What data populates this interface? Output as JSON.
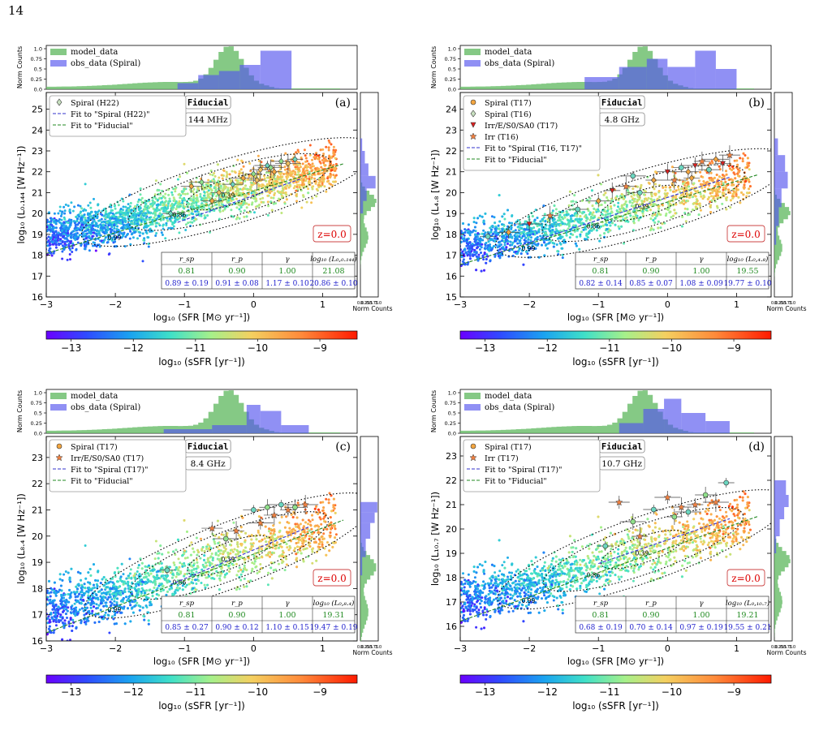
{
  "page_number": "14",
  "panel_labels": [
    "(a)",
    "(b)",
    "(c)",
    "(d)"
  ],
  "shared": {
    "x_axis_label": "log₁₀ (SFR [M⊙ yr⁻¹])",
    "x_ticks": [
      "−3",
      "−2",
      "−1",
      "0",
      "1"
    ],
    "hist_top_ylabel": "Norm Counts",
    "hist_top_yticks": [
      "0.0",
      "0.25",
      "0.5",
      "0.75",
      "1.0"
    ],
    "hist_side_xlabel": "Norm Counts",
    "hist_side_xticks": [
      "0.0",
      "0.25",
      "0.5",
      "0.75",
      "1.0"
    ],
    "hist_legend_model": "model_data",
    "hist_legend_obs": "obs_data (Spiral)",
    "fiducial_label": "Fiducial",
    "redshift_label": "z=0.0",
    "contour_labels": [
      "0.99",
      "0.86",
      "0.39"
    ],
    "colorbar_label": "log₁₀ (sSFR [yr⁻¹])",
    "colorbar_ticks": [
      "−13",
      "−12",
      "−11",
      "−10",
      "−9"
    ],
    "colorbar_range": [
      -13.4,
      -8.4
    ],
    "colors": {
      "model_hist": "#66bb66",
      "obs_hist": "#5555ee",
      "fit_obs": "#3333cc",
      "fit_fiducial": "#228822",
      "table_model_text": "#228b22",
      "table_obs_text": "#1f1fcc",
      "redshift_text": "#dd0000"
    },
    "table_headers": [
      "r_sp",
      "r_p",
      "γ"
    ]
  },
  "chart_data": [
    {
      "type": "scatter",
      "panel": "(a)",
      "frequency": "144 MHz",
      "ylabel": "log₁₀ (L₀.₁₄₄ [W Hz⁻¹])",
      "yticks": [
        "16",
        "17",
        "18",
        "19",
        "20",
        "21",
        "22",
        "23",
        "24",
        "25"
      ],
      "ylim": [
        16,
        25.8
      ],
      "xlim": [
        -3,
        1.5
      ],
      "legend": [
        "Spiral (H22)",
        "Fit to \"Spiral (H22)\"",
        "Fit to \"Fiducial\""
      ],
      "fit_fiducial": {
        "slope": 1.0,
        "intercept": 21.08
      },
      "fit_obs": {
        "slope": 1.17,
        "intercept": 20.86,
        "x_range": [
          -1.1,
          0.7
        ]
      },
      "table_last_header": "log₁₀ (L₀,₀.₁₄₄)",
      "table_model": [
        "0.81",
        "0.90",
        "1.00",
        "21.08"
      ],
      "table_obs": [
        "0.89 ± 0.19",
        "0.91 ± 0.08",
        "1.17 ± 0.10",
        "20.86 ± 0.10"
      ],
      "obs_points": [
        {
          "x": -1.2,
          "y": 20.0
        },
        {
          "x": -0.9,
          "y": 21.3
        },
        {
          "x": -0.75,
          "y": 21.5
        },
        {
          "x": -0.5,
          "y": 21.0
        },
        {
          "x": -0.3,
          "y": 21.4
        },
        {
          "x": -0.15,
          "y": 21.7
        },
        {
          "x": 0.0,
          "y": 21.9
        },
        {
          "x": 0.1,
          "y": 22.1
        },
        {
          "x": 0.2,
          "y": 22.3
        },
        {
          "x": 0.3,
          "y": 22.0
        },
        {
          "x": 0.4,
          "y": 22.5
        },
        {
          "x": 0.5,
          "y": 22.4
        },
        {
          "x": 0.6,
          "y": 22.6
        },
        {
          "x": -0.6,
          "y": 20.6
        },
        {
          "x": 0.25,
          "y": 22.2
        },
        {
          "x": 0.05,
          "y": 21.6
        }
      ],
      "obs_markers": [
        "diamond"
      ],
      "top_hist_obs": {
        "edges": [
          -1.1,
          -0.8,
          -0.5,
          -0.2,
          0.1,
          0.55
        ],
        "values": [
          0.15,
          0.35,
          0.45,
          0.6,
          0.95
        ]
      },
      "side_hist_obs": {
        "edges": [
          20.0,
          20.6,
          21.2,
          21.8,
          22.4,
          23.0,
          23.6
        ],
        "values": [
          0.15,
          0.35,
          0.85,
          0.45,
          0.25,
          0.1
        ]
      }
    },
    {
      "type": "scatter",
      "panel": "(b)",
      "frequency": "4.8 GHz",
      "ylabel": "log₁₀ (L₄.₈ [W Hz⁻¹])",
      "yticks": [
        "15",
        "16",
        "17",
        "18",
        "19",
        "20",
        "21",
        "22",
        "23",
        "24"
      ],
      "ylim": [
        15,
        24.8
      ],
      "xlim": [
        -3,
        1.5
      ],
      "legend": [
        "Spiral (T17)",
        "Spiral (T16)",
        "Irr/E/S0/SA0 (T17)",
        "Irr (T16)",
        "Fit to \"Spiral (T16, T17)\"",
        "Fit to \"Fiducial\""
      ],
      "fit_fiducial": {
        "slope": 1.0,
        "intercept": 19.55
      },
      "fit_obs": {
        "slope": 1.08,
        "intercept": 19.77,
        "x_range": [
          -2.5,
          0.9
        ]
      },
      "table_last_header": "log₁₀ (L₀,₄.₈)",
      "table_model": [
        "0.81",
        "0.90",
        "1.00",
        "19.55"
      ],
      "table_obs": [
        "0.82 ± 0.14",
        "0.85 ± 0.07",
        "1.08 ± 0.09",
        "19.77 ± 0.10"
      ],
      "obs_points": [
        {
          "x": -2.6,
          "y": 17.9
        },
        {
          "x": -2.3,
          "y": 18.1
        },
        {
          "x": -2.0,
          "y": 18.5
        },
        {
          "x": -1.7,
          "y": 18.9
        },
        {
          "x": -1.3,
          "y": 19.2
        },
        {
          "x": -1.0,
          "y": 19.6
        },
        {
          "x": -0.8,
          "y": 20.1
        },
        {
          "x": -0.6,
          "y": 20.3
        },
        {
          "x": -0.4,
          "y": 20.0
        },
        {
          "x": -0.2,
          "y": 20.6
        },
        {
          "x": 0.0,
          "y": 21.0
        },
        {
          "x": 0.1,
          "y": 20.6
        },
        {
          "x": 0.2,
          "y": 21.2
        },
        {
          "x": 0.3,
          "y": 21.0
        },
        {
          "x": 0.4,
          "y": 21.3
        },
        {
          "x": 0.5,
          "y": 21.5
        },
        {
          "x": 0.6,
          "y": 21.1
        },
        {
          "x": 0.7,
          "y": 21.6
        },
        {
          "x": 0.8,
          "y": 21.4
        },
        {
          "x": 0.9,
          "y": 21.8
        },
        {
          "x": -0.5,
          "y": 20.8
        },
        {
          "x": 0.35,
          "y": 20.7
        }
      ],
      "obs_markers": [
        "circle",
        "diamond",
        "triangle",
        "star"
      ],
      "top_hist_obs": {
        "edges": [
          -1.2,
          -0.7,
          -0.3,
          0.0,
          0.4,
          0.7,
          1.0
        ],
        "values": [
          0.3,
          0.55,
          0.75,
          0.55,
          0.95,
          0.5
        ]
      },
      "side_hist_obs": {
        "edges": [
          17.5,
          18.4,
          19.3,
          20.2,
          21.0,
          21.8,
          22.6
        ],
        "values": [
          0.1,
          0.25,
          0.4,
          0.75,
          0.6,
          0.2
        ]
      }
    },
    {
      "type": "scatter",
      "panel": "(c)",
      "frequency": "8.4 GHz",
      "ylabel": "log₁₀ (L₈.₄ [W Hz⁻¹])",
      "yticks": [
        "16",
        "17",
        "18",
        "19",
        "20",
        "21",
        "22",
        "23"
      ],
      "ylim": [
        16,
        23.8
      ],
      "xlim": [
        -3,
        1.5
      ],
      "legend": [
        "Spiral (T17)",
        "Irr/E/S0/SA0 (T17)",
        "Fit to \"Spiral (T17)\"",
        "Fit to \"Fiducial\""
      ],
      "fit_fiducial": {
        "slope": 1.0,
        "intercept": 19.31
      },
      "fit_obs": {
        "slope": 1.1,
        "intercept": 19.47,
        "x_range": [
          -1.2,
          0.8
        ]
      },
      "table_last_header": "log₁₀ (L₀,₈.₄)",
      "table_model": [
        "0.81",
        "0.90",
        "1.00",
        "19.31"
      ],
      "table_obs": [
        "0.85 ± 0.27",
        "0.90 ± 0.12",
        "1.10 ± 0.15",
        "19.47 ± 0.19"
      ],
      "obs_points": [
        {
          "x": -1.25,
          "y": 18.7
        },
        {
          "x": -0.6,
          "y": 20.3
        },
        {
          "x": -0.4,
          "y": 19.9
        },
        {
          "x": -0.25,
          "y": 20.2
        },
        {
          "x": 0.0,
          "y": 21.0
        },
        {
          "x": 0.1,
          "y": 20.5
        },
        {
          "x": 0.2,
          "y": 21.1
        },
        {
          "x": 0.3,
          "y": 20.8
        },
        {
          "x": 0.4,
          "y": 21.2
        },
        {
          "x": 0.5,
          "y": 21.0
        },
        {
          "x": 0.6,
          "y": 21.1
        },
        {
          "x": 0.75,
          "y": 21.2
        }
      ],
      "obs_markers": [
        "circle",
        "star"
      ],
      "top_hist_obs": {
        "edges": [
          -1.3,
          -0.6,
          -0.1,
          0.1,
          0.4,
          0.8
        ],
        "values": [
          0.1,
          0.2,
          0.7,
          0.55,
          0.2
        ]
      },
      "side_hist_obs": {
        "edges": [
          18.5,
          19.2,
          19.9,
          20.5,
          20.9,
          21.3
        ],
        "values": [
          0.1,
          0.3,
          0.55,
          0.8,
          0.95
        ]
      }
    },
    {
      "type": "scatter",
      "panel": "(d)",
      "frequency": "10.7 GHz",
      "ylabel": "log₁₀ (L₁₀.₇ [W Hz⁻¹])",
      "yticks": [
        "16",
        "17",
        "18",
        "19",
        "20",
        "21",
        "22",
        "23"
      ],
      "ylim": [
        15.4,
        23.8
      ],
      "xlim": [
        -3,
        1.5
      ],
      "legend": [
        "Spiral (T17)",
        "Irr (T17)",
        "Fit to \"Spiral (T17)\"",
        "Fit to \"Fiducial\""
      ],
      "fit_fiducial": {
        "slope": 1.0,
        "intercept": 19.21
      },
      "fit_obs": {
        "slope": 0.97,
        "intercept": 19.55,
        "x_range": [
          -1.0,
          0.9
        ]
      },
      "table_last_header": "log₁₀ (L₀,₁₀.₇)",
      "table_model": [
        "0.81",
        "0.90",
        "1.00",
        "19.21"
      ],
      "table_obs": [
        "0.68 ± 0.19",
        "0.70 ± 0.14",
        "0.97 ± 0.19",
        "19.55 ± 0.21"
      ],
      "obs_points": [
        {
          "x": -0.9,
          "y": 19.3
        },
        {
          "x": -0.7,
          "y": 21.1
        },
        {
          "x": -0.5,
          "y": 20.3
        },
        {
          "x": -0.4,
          "y": 19.7
        },
        {
          "x": -0.2,
          "y": 20.8
        },
        {
          "x": 0.0,
          "y": 21.3
        },
        {
          "x": 0.1,
          "y": 20.5
        },
        {
          "x": 0.2,
          "y": 20.9
        },
        {
          "x": 0.3,
          "y": 20.7
        },
        {
          "x": 0.4,
          "y": 21.0
        },
        {
          "x": 0.55,
          "y": 21.4
        },
        {
          "x": 0.7,
          "y": 21.1
        },
        {
          "x": 0.85,
          "y": 21.9
        }
      ],
      "obs_markers": [
        "circle",
        "star"
      ],
      "top_hist_obs": {
        "edges": [
          -0.7,
          -0.35,
          -0.05,
          0.2,
          0.55,
          0.9
        ],
        "values": [
          0.25,
          0.6,
          0.85,
          0.5,
          0.3
        ]
      },
      "side_hist_obs": {
        "edges": [
          19.0,
          19.7,
          20.4,
          20.9,
          21.4,
          22.0
        ],
        "values": [
          0.1,
          0.3,
          0.55,
          0.8,
          0.65
        ]
      }
    }
  ]
}
